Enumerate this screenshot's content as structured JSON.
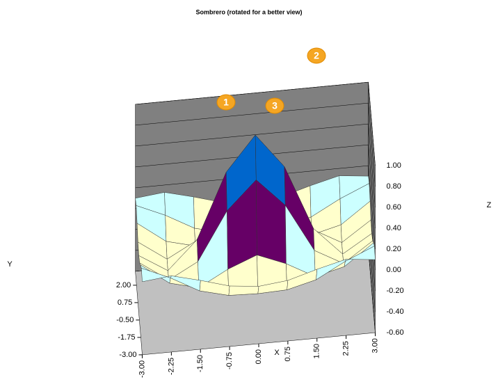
{
  "chart_data": {
    "type": "surface",
    "title": "Sombrero (rotated for a better view)",
    "x_label": "X",
    "y_label": "Y",
    "z_label": "Z",
    "x": [
      -3,
      -2.25,
      -1.5,
      -0.75,
      0,
      0.75,
      1.5,
      2.25,
      3
    ],
    "y": [
      -3,
      -2.25,
      -1.5,
      -0.75,
      0,
      0.75,
      1.5,
      2.25,
      3
    ],
    "z": [
      [
        0.1,
        0.13,
        0.06,
        -0.02,
        -0.05,
        -0.02,
        0.06,
        0.13,
        0.1
      ],
      [
        0.13,
        0.01,
        -0.14,
        -0.21,
        -0.22,
        -0.21,
        -0.14,
        0.01,
        0.13
      ],
      [
        0.06,
        -0.14,
        -0.21,
        -0.06,
        0.05,
        -0.06,
        -0.21,
        -0.14,
        0.06
      ],
      [
        -0.02,
        -0.21,
        -0.06,
        0.4,
        0.67,
        0.4,
        -0.06,
        -0.21,
        -0.02
      ],
      [
        -0.05,
        -0.22,
        0.05,
        0.67,
        1,
        0.67,
        0.05,
        -0.22,
        -0.05
      ],
      [
        -0.02,
        -0.21,
        -0.06,
        0.4,
        0.67,
        0.4,
        -0.06,
        -0.21,
        -0.02
      ],
      [
        0.06,
        -0.14,
        -0.21,
        -0.06,
        0.05,
        -0.06,
        -0.21,
        -0.14,
        0.06
      ],
      [
        0.13,
        0.01,
        -0.14,
        -0.21,
        -0.22,
        -0.21,
        -0.14,
        0.01,
        0.13
      ],
      [
        0.1,
        0.13,
        0.06,
        -0.02,
        -0.05,
        -0.02,
        0.06,
        0.13,
        0.1
      ]
    ],
    "xlim": [
      -3,
      3
    ],
    "ylim": [
      -3,
      3
    ],
    "zlim": [
      -0.6,
      1
    ],
    "xticks": [
      {
        "value": -3,
        "label": "-3.00"
      },
      {
        "value": -2.25,
        "label": "-2.25"
      },
      {
        "value": -1.5,
        "label": "-1.50"
      },
      {
        "value": -0.75,
        "label": "-0.75"
      },
      {
        "value": 0,
        "label": "0.00"
      },
      {
        "value": 0.75,
        "label": "0.75"
      },
      {
        "value": 1.5,
        "label": "1.50"
      },
      {
        "value": 2.25,
        "label": "2.25"
      },
      {
        "value": 3,
        "label": "3.00"
      }
    ],
    "yticks": [
      {
        "value": -3,
        "label": "-3.00"
      },
      {
        "value": -1.75,
        "label": "-1.75"
      },
      {
        "value": -0.5,
        "label": "-0.50"
      },
      {
        "value": 0.75,
        "label": "0.75"
      },
      {
        "value": 2,
        "label": "2.00"
      }
    ],
    "zticks": [
      {
        "value": -0.6,
        "label": "-0.60"
      },
      {
        "value": -0.4,
        "label": "-0.40"
      },
      {
        "value": -0.2,
        "label": "-0.20"
      },
      {
        "value": 0,
        "label": "0.00"
      },
      {
        "value": 0.2,
        "label": "0.20"
      },
      {
        "value": 0.4,
        "label": "0.40"
      },
      {
        "value": 0.6,
        "label": "0.60"
      },
      {
        "value": 0.8,
        "label": "0.80"
      },
      {
        "value": 1,
        "label": "1.00"
      }
    ],
    "band_colors": [
      "#9999ff",
      "#993366",
      "#ffffcc",
      "#ccffff",
      "#660066",
      "#ff8080",
      "#0066cc",
      "#ccccff"
    ],
    "annotations": [
      "1",
      "2",
      "3"
    ]
  }
}
